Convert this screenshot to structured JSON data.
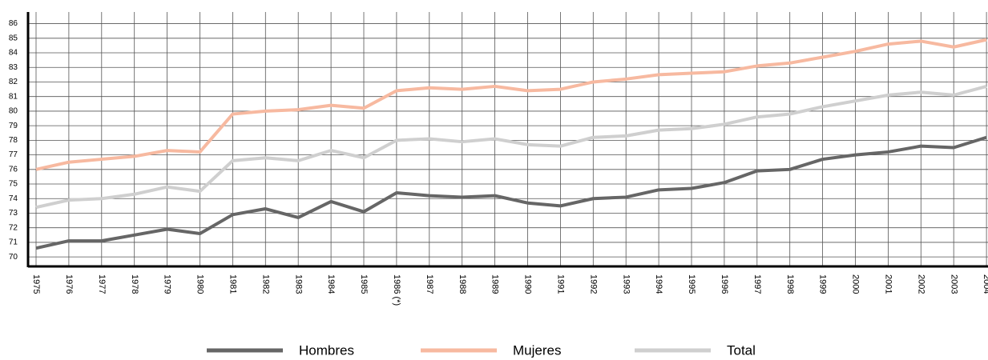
{
  "chart_data": {
    "type": "line",
    "categories": [
      "1975",
      "1976",
      "1977",
      "1978",
      "1979",
      "1980",
      "1981",
      "1982",
      "1983",
      "1984",
      "1985",
      "1986 (*)",
      "1987",
      "1988",
      "1989",
      "1990",
      "1991",
      "1992",
      "1993",
      "1994",
      "1995",
      "1996",
      "1997",
      "1998",
      "1999",
      "2000",
      "2001",
      "2002",
      "2003",
      "2004"
    ],
    "series": [
      {
        "name": "Hombres",
        "color": "#666666",
        "values": [
          70.6,
          71.1,
          71.1,
          71.5,
          71.9,
          71.6,
          72.9,
          73.3,
          72.7,
          73.8,
          73.1,
          74.4,
          74.2,
          74.1,
          74.2,
          73.7,
          73.5,
          74.0,
          74.1,
          74.6,
          74.7,
          75.1,
          75.9,
          76.0,
          76.7,
          77.0,
          77.2,
          77.6,
          77.5,
          78.2
        ]
      },
      {
        "name": "Mujeres",
        "color": "#f7b9a0",
        "values": [
          76.0,
          76.5,
          76.7,
          76.9,
          77.3,
          77.2,
          79.8,
          80.0,
          80.1,
          80.4,
          80.2,
          81.4,
          81.6,
          81.5,
          81.7,
          81.4,
          81.5,
          82.0,
          82.2,
          82.5,
          82.6,
          82.7,
          83.1,
          83.3,
          83.7,
          84.1,
          84.6,
          84.8,
          84.4,
          84.9
        ]
      },
      {
        "name": "Total",
        "color": "#cfcfcf",
        "values": [
          73.4,
          73.9,
          74.0,
          74.3,
          74.8,
          74.5,
          76.6,
          76.8,
          76.6,
          77.3,
          76.8,
          78.0,
          78.1,
          77.9,
          78.1,
          77.7,
          77.6,
          78.2,
          78.3,
          78.7,
          78.8,
          79.1,
          79.6,
          79.8,
          80.3,
          80.7,
          81.1,
          81.3,
          81.1,
          81.7
        ]
      }
    ],
    "ylim": [
      69.35,
      86.8
    ],
    "yticks": [
      70,
      71,
      72,
      73,
      74,
      75,
      76,
      77,
      78,
      79,
      80,
      81,
      82,
      83,
      84,
      85,
      86
    ],
    "grid": true
  }
}
